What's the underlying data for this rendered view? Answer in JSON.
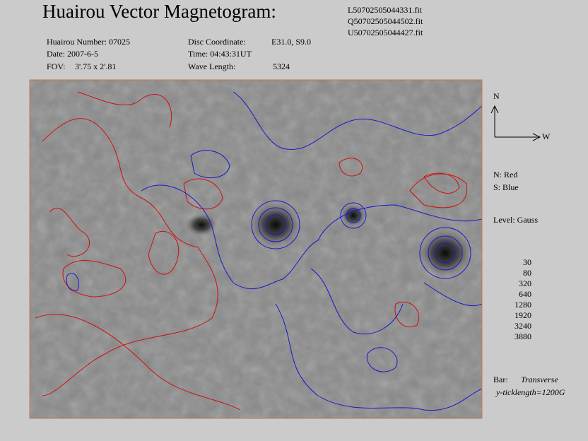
{
  "header": {
    "title": "Huairou Vector Magnetogram:",
    "files": [
      "L50702505044331.fit",
      "Q50702505044502.fit",
      "U50702505044427.fit"
    ]
  },
  "info": {
    "number": "Huairou Number: 07025",
    "date": "Date: 2007-6-5",
    "fov_label": "FOV:",
    "fov": "3'.75 x 2'.81",
    "disc_label": "Disc Coordinate:",
    "disc": "E31.0, S9.0",
    "time": "Time: 04:43:31UT",
    "wave_label": "Wave Length:",
    "wave": "5324"
  },
  "compass": {
    "north": "N",
    "west": "W"
  },
  "legend": {
    "north": "N: Red",
    "south": "S: Blue",
    "level": "Level: Gauss",
    "levels": [
      30,
      80,
      320,
      640,
      1280,
      1920,
      3240,
      3880
    ],
    "bar_label": "Bar:",
    "bar_value": "Transverse",
    "ticklength": "y-ticklength=1200G"
  }
}
